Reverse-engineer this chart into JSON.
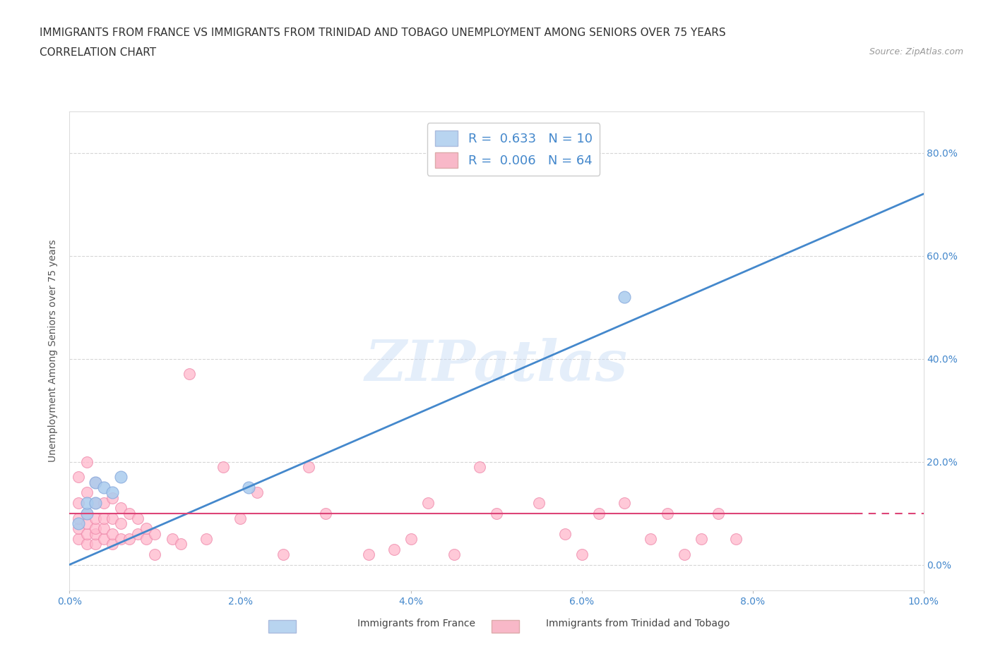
{
  "title_line1": "IMMIGRANTS FROM FRANCE VS IMMIGRANTS FROM TRINIDAD AND TOBAGO UNEMPLOYMENT AMONG SENIORS OVER 75 YEARS",
  "title_line2": "CORRELATION CHART",
  "source": "Source: ZipAtlas.com",
  "ylabel": "Unemployment Among Seniors over 75 years",
  "watermark": "ZIPatlas",
  "legend1_label": "R =  0.633   N = 10",
  "legend2_label": "R =  0.006   N = 64",
  "legend1_color": "#b8d4f0",
  "legend2_color": "#f8b8c8",
  "trend1_color": "#4488cc",
  "trend2_color": "#dd4477",
  "scatter1_color": "#aaccee",
  "scatter2_color": "#ffb8cc",
  "scatter1_edge": "#88aadd",
  "scatter2_edge": "#ee88aa",
  "background_color": "#ffffff",
  "grid_color": "#cccccc",
  "axis_label_color": "#4488cc",
  "france_x": [
    0.001,
    0.002,
    0.002,
    0.003,
    0.003,
    0.004,
    0.005,
    0.006,
    0.021,
    0.065
  ],
  "france_y": [
    0.08,
    0.1,
    0.12,
    0.12,
    0.16,
    0.15,
    0.14,
    0.17,
    0.15,
    0.52
  ],
  "tt_x": [
    0.001,
    0.001,
    0.001,
    0.001,
    0.001,
    0.002,
    0.002,
    0.002,
    0.002,
    0.002,
    0.002,
    0.003,
    0.003,
    0.003,
    0.003,
    0.003,
    0.003,
    0.004,
    0.004,
    0.004,
    0.004,
    0.005,
    0.005,
    0.005,
    0.005,
    0.006,
    0.006,
    0.006,
    0.007,
    0.007,
    0.008,
    0.008,
    0.009,
    0.009,
    0.01,
    0.01,
    0.012,
    0.013,
    0.014,
    0.016,
    0.018,
    0.02,
    0.022,
    0.025,
    0.028,
    0.03,
    0.035,
    0.038,
    0.04,
    0.042,
    0.045,
    0.048,
    0.05,
    0.055,
    0.058,
    0.06,
    0.062,
    0.065,
    0.068,
    0.07,
    0.072,
    0.074,
    0.076,
    0.078
  ],
  "tt_y": [
    0.05,
    0.07,
    0.09,
    0.12,
    0.17,
    0.04,
    0.06,
    0.08,
    0.1,
    0.14,
    0.2,
    0.04,
    0.06,
    0.07,
    0.09,
    0.12,
    0.16,
    0.05,
    0.07,
    0.09,
    0.12,
    0.04,
    0.06,
    0.09,
    0.13,
    0.05,
    0.08,
    0.11,
    0.05,
    0.1,
    0.06,
    0.09,
    0.05,
    0.07,
    0.02,
    0.06,
    0.05,
    0.04,
    0.37,
    0.05,
    0.19,
    0.09,
    0.14,
    0.02,
    0.19,
    0.1,
    0.02,
    0.03,
    0.05,
    0.12,
    0.02,
    0.19,
    0.1,
    0.12,
    0.06,
    0.02,
    0.1,
    0.12,
    0.05,
    0.1,
    0.02,
    0.05,
    0.1,
    0.05
  ],
  "france_trend_x": [
    0.0,
    0.1
  ],
  "france_trend_y": [
    0.0,
    0.72
  ],
  "tt_trend_y": 0.1,
  "tt_trend_x_solid_end": 0.092,
  "xlim": [
    0.0,
    0.1
  ],
  "ylim": [
    -0.05,
    0.88
  ],
  "xticks": [
    0.0,
    0.02,
    0.04,
    0.06,
    0.08,
    0.1
  ],
  "yticks": [
    0.0,
    0.2,
    0.4,
    0.6,
    0.8
  ],
  "title_fontsize": 11,
  "axis_fontsize": 10,
  "tick_fontsize": 10
}
